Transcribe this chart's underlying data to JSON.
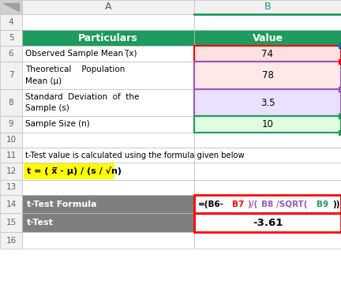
{
  "fig_width": 4.32,
  "fig_height": 3.75,
  "dpi": 100,
  "bg_color": "#FFFFFF",
  "header_bg": "#1E9B5E",
  "header_text_color": "#FFFFFF",
  "header_A_text": "Particulars",
  "header_B_text": "Value",
  "row6_A": "Observed Sample Mean (̅x)",
  "row6_B": "74",
  "row7_B": "78",
  "row8_B": "3.5",
  "row9_A": "Sample Size (n)",
  "row9_B": "10",
  "row11_text": "t-Test value is calculated using the formula given below",
  "row12_formula": "t = ( x̅ - μ) / (s / √n)",
  "row14_A": "t-Test Formula",
  "row14_B_parts": [
    "=(B6-",
    "B7",
    ")/(",
    "B8",
    "/SQRT(",
    "B9",
    "))"
  ],
  "row14_B_colors": [
    "#000000",
    "#FF0000",
    "#9B59B6",
    "#9B59B6",
    "#9B59B6",
    "#1E9B5E",
    "#000000"
  ],
  "row15_A": "t-Test",
  "row15_B": "-3.61",
  "row14_15_A_bg": "#7F7F7F",
  "row14_15_A_text": "#FFFFFF",
  "cell_light_border": "#BFBFBF",
  "row6_B_border": "#FF0000",
  "row7_B_border": "#9B59B6",
  "row8_B_border": "#9B59B6",
  "row9_B_border": "#1E9B5E",
  "row14_15_B_border": "#FF0000",
  "row6_B_bg": "#FFE0E0",
  "row7_B_bg": "#FFE8E8",
  "row8_B_bg": "#EAE0FF",
  "row9_B_bg": "#E0FFE0",
  "row6_B_corner_color": "#0070C0",
  "row7_B_corner_top": "#FF0000",
  "row7_B_corner_bot": "#9B59B6",
  "row8_B_corner_top": "#9B59B6",
  "row8_B_corner_bot": "#9B59B6",
  "row9_B_corner_top": "#1E9B5E",
  "row9_B_corner_bot": "#1E9B5E",
  "yellow_bg": "#FFFF00",
  "col_header_bg": "#F2F2F2",
  "col_header_border": "#BFBFBF",
  "B_header_color": "#1E9B5E",
  "rownr_bg": "#F2F2F2",
  "corner_icon_bg": "#D0D0D0"
}
